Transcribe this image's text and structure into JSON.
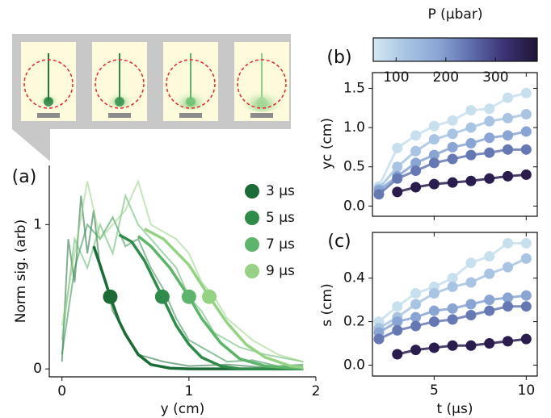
{
  "chart_data": [
    {
      "type": "line",
      "panel_label": "(a)",
      "xlabel": "y (cm)",
      "ylabel": "Norm sig. (arb)",
      "xlim": [
        -0.1,
        2.0
      ],
      "ylim": [
        -0.055,
        1.41
      ],
      "xticks": [
        0,
        1,
        2
      ],
      "yticks": [
        0,
        1
      ],
      "legend": "upper right",
      "series": [
        {
          "name": "3 µs",
          "color": "#1b6b36",
          "x": [
            0,
            0.05,
            0.1,
            0.15,
            0.2,
            0.25,
            0.3,
            0.35,
            0.4,
            0.5,
            0.6,
            0.8,
            1.0,
            1.3,
            1.6,
            1.9
          ],
          "values": [
            0.05,
            0.9,
            0.6,
            1.2,
            0.8,
            1.1,
            0.7,
            0.6,
            0.4,
            0.25,
            0.1,
            0.05,
            0.02,
            0.03,
            0.01,
            0.02
          ],
          "fit_x": [
            0.25,
            0.3,
            0.38,
            0.45,
            0.5,
            0.6,
            0.7,
            0.85,
            1.0,
            1.9
          ],
          "fit_values": [
            0.85,
            0.72,
            0.5,
            0.33,
            0.24,
            0.1,
            0.03,
            0.005,
            0,
            0
          ],
          "marker_x": 0.38,
          "marker_value": 0.5
        },
        {
          "name": "5 µs",
          "color": "#2e8b4a",
          "x": [
            0,
            0.1,
            0.2,
            0.3,
            0.4,
            0.5,
            0.6,
            0.7,
            0.8,
            0.9,
            1.0,
            1.1,
            1.3,
            1.5,
            1.7,
            1.9
          ],
          "values": [
            0.1,
            0.7,
            1.0,
            0.9,
            1.05,
            0.85,
            0.9,
            0.7,
            0.55,
            0.35,
            0.2,
            0.15,
            0.05,
            0.06,
            0.02,
            0.03
          ],
          "fit_x": [
            0.45,
            0.55,
            0.65,
            0.79,
            0.9,
            1.0,
            1.1,
            1.25,
            1.4,
            1.9
          ],
          "fit_values": [
            0.93,
            0.88,
            0.75,
            0.5,
            0.3,
            0.17,
            0.08,
            0.02,
            0,
            0
          ],
          "marker_x": 0.79,
          "marker_value": 0.5
        },
        {
          "name": "7 µs",
          "color": "#5cb56a",
          "x": [
            0,
            0.1,
            0.2,
            0.3,
            0.4,
            0.5,
            0.6,
            0.7,
            0.8,
            0.9,
            1.0,
            1.1,
            1.2,
            1.4,
            1.6,
            1.9
          ],
          "values": [
            0.2,
            0.9,
            0.7,
            1.0,
            0.8,
            1.2,
            1.0,
            0.9,
            0.8,
            0.7,
            0.5,
            0.4,
            0.25,
            0.15,
            0.1,
            0.05
          ],
          "fit_x": [
            0.6,
            0.7,
            0.85,
            1.0,
            1.1,
            1.25,
            1.4,
            1.6,
            1.9
          ],
          "fit_values": [
            0.92,
            0.85,
            0.7,
            0.5,
            0.35,
            0.18,
            0.07,
            0.02,
            0
          ],
          "marker_x": 1.0,
          "marker_value": 0.5
        },
        {
          "name": "9 µs",
          "color": "#95d283",
          "x": [
            0,
            0.1,
            0.2,
            0.3,
            0.4,
            0.5,
            0.6,
            0.7,
            0.8,
            0.9,
            1.0,
            1.1,
            1.2,
            1.3,
            1.5,
            1.7,
            1.9
          ],
          "values": [
            0.3,
            0.8,
            1.3,
            0.9,
            1.0,
            1.1,
            1.3,
            1.0,
            0.95,
            0.9,
            0.8,
            0.6,
            0.5,
            0.35,
            0.2,
            0.1,
            0.05
          ],
          "fit_x": [
            0.65,
            0.8,
            1.0,
            1.16,
            1.3,
            1.45,
            1.6,
            1.8,
            1.9
          ],
          "fit_values": [
            0.97,
            0.9,
            0.72,
            0.5,
            0.32,
            0.17,
            0.08,
            0.02,
            0.01
          ],
          "marker_x": 1.16,
          "marker_value": 0.5
        }
      ]
    },
    {
      "type": "scatter",
      "panel_label": "(b)",
      "ylabel": "yc (cm)",
      "xlim": [
        1.65,
        10.6
      ],
      "ylim": [
        -0.13,
        1.7
      ],
      "xticks": [
        5,
        10
      ],
      "xticklabels": false,
      "yticks": [
        {
          "value": 0,
          "label": "0.0"
        },
        0.5,
        {
          "value": 1,
          "label": "1.0"
        },
        1.5
      ],
      "x": [
        2,
        3,
        4,
        5,
        6,
        7,
        8,
        9,
        10
      ],
      "series": [
        {
          "color": "#c8e0ee",
          "values": [
            0.25,
            0.74,
            0.9,
            1.02,
            1.09,
            1.22,
            1.24,
            1.38,
            1.44
          ]
        },
        {
          "color": "#a8c4e2",
          "values": [
            0.22,
            0.5,
            0.7,
            0.85,
            0.92,
            1.0,
            1.08,
            1.12,
            1.17
          ]
        },
        {
          "color": "#8aa5d4",
          "values": [
            0.2,
            0.38,
            0.55,
            0.65,
            0.75,
            0.8,
            0.87,
            0.9,
            0.95
          ]
        },
        {
          "color": "#6678b4",
          "values": [
            0.15,
            0.35,
            0.45,
            0.55,
            0.6,
            0.65,
            0.68,
            0.72,
            0.72
          ]
        },
        {
          "color": "#2a1d4d",
          "values": [
            null,
            0.18,
            0.24,
            0.28,
            0.3,
            0.32,
            0.35,
            0.38,
            0.4
          ]
        }
      ]
    },
    {
      "type": "scatter",
      "panel_label": "(c)",
      "ylabel": "s (cm)",
      "xlabel": "t (µs)",
      "xlim": [
        1.65,
        10.6
      ],
      "ylim": [
        -0.05,
        0.61
      ],
      "xticks": [
        5,
        10
      ],
      "yticks": [
        {
          "value": 0,
          "label": "0.0"
        },
        0.2,
        0.4
      ],
      "x": [
        2,
        3,
        4,
        5,
        6,
        7,
        8,
        9,
        10
      ],
      "series": [
        {
          "color": "#c8e0ee",
          "values": [
            0.2,
            0.27,
            0.33,
            0.36,
            0.4,
            0.47,
            0.5,
            0.56,
            0.56
          ]
        },
        {
          "color": "#a8c4e2",
          "values": [
            0.17,
            0.22,
            0.28,
            0.33,
            0.36,
            0.38,
            0.42,
            0.45,
            0.49
          ]
        },
        {
          "color": "#8aa5d4",
          "values": [
            0.15,
            0.2,
            0.22,
            0.25,
            0.26,
            0.28,
            0.3,
            0.31,
            0.32
          ]
        },
        {
          "color": "#6678b4",
          "values": [
            0.12,
            0.16,
            0.18,
            0.2,
            0.21,
            0.23,
            0.25,
            0.27,
            0.27
          ]
        },
        {
          "color": "#2a1d4d",
          "values": [
            null,
            0.05,
            0.07,
            0.08,
            0.09,
            0.09,
            0.1,
            0.11,
            0.12
          ]
        }
      ]
    },
    {
      "type": "colorbar",
      "label": "P (µbar)",
      "xlim": [
        54,
        384
      ],
      "xticks": [
        100,
        200,
        300
      ],
      "colormap": [
        "#d4e8f3",
        "#a8c4e2",
        "#8aa5d4",
        "#5e6cac",
        "#3b3373",
        "#1f1538"
      ]
    }
  ]
}
